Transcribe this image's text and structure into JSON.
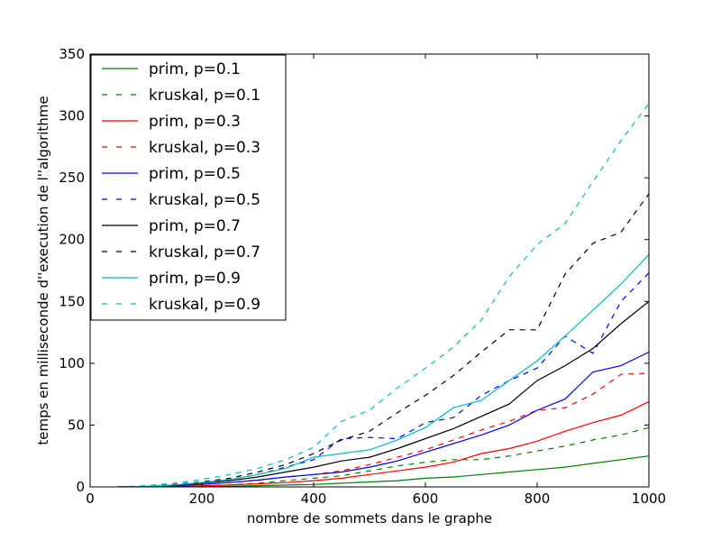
{
  "chart_data": {
    "type": "line",
    "title": "",
    "xlabel": "nombre de sommets dans le graphe",
    "ylabel": "temps en milliseconde d''execution de l''algorithme",
    "xlim": [
      0,
      1000
    ],
    "ylim": [
      0,
      350
    ],
    "xticks": [
      0,
      200,
      400,
      600,
      800,
      1000
    ],
    "yticks": [
      0,
      50,
      100,
      150,
      200,
      250,
      300,
      350
    ],
    "grid": false,
    "legend_position": "top-left",
    "x": [
      50,
      100,
      150,
      200,
      250,
      300,
      350,
      400,
      450,
      500,
      550,
      600,
      650,
      700,
      750,
      800,
      850,
      900,
      950,
      1000
    ],
    "series": [
      {
        "name": "prim, p=0.1",
        "color": "#008000",
        "dash": "solid",
        "values": [
          0,
          0,
          0,
          0.3,
          0.5,
          1,
          1.5,
          2,
          3,
          4,
          5,
          7,
          8,
          10,
          12,
          14,
          16,
          19,
          22,
          25
        ]
      },
      {
        "name": "kruskal, p=0.1",
        "color": "#008000",
        "dash": "dashed",
        "values": [
          0,
          0,
          0.3,
          0.8,
          1.5,
          3,
          5,
          7,
          9,
          13,
          17,
          20,
          22,
          22,
          25,
          29,
          33,
          38,
          42,
          48
        ]
      },
      {
        "name": "prim, p=0.3",
        "color": "#ff0000",
        "dash": "solid",
        "values": [
          0,
          0,
          0.3,
          0.8,
          1.5,
          2.5,
          3.5,
          5,
          7,
          10,
          13,
          16,
          20,
          27,
          31,
          37,
          45,
          52,
          58,
          69
        ]
      },
      {
        "name": "kruskal, p=0.3",
        "color": "#ff0000",
        "dash": "dashed",
        "values": [
          0,
          0.3,
          0.8,
          2,
          3.5,
          5.5,
          8,
          10,
          13,
          18,
          24,
          30,
          38,
          46,
          53,
          62,
          64,
          75,
          91,
          92
        ]
      },
      {
        "name": "prim, p=0.5",
        "color": "#0000ff",
        "dash": "solid",
        "values": [
          0,
          0.3,
          1,
          2,
          3.5,
          5.5,
          8,
          10,
          12,
          16,
          21,
          28,
          35,
          42,
          50,
          62,
          71,
          93,
          98,
          109
        ]
      },
      {
        "name": "kruskal, p=0.5",
        "color": "#0000ff",
        "dash": "dashed",
        "values": [
          0,
          0.5,
          1.5,
          3,
          6,
          10,
          16,
          22,
          39,
          40,
          39,
          52,
          56,
          74,
          86,
          96,
          122,
          108,
          150,
          173
        ]
      },
      {
        "name": "prim, p=0.7",
        "color": "#000000",
        "dash": "solid",
        "values": [
          0,
          0.4,
          1.2,
          3,
          5,
          8,
          12,
          16,
          21,
          24,
          31,
          39,
          47,
          57,
          67,
          86,
          98,
          112,
          132,
          150
        ]
      },
      {
        "name": "kruskal, p=0.7",
        "color": "#000000",
        "dash": "dashed",
        "values": [
          0,
          0.6,
          2,
          4,
          7,
          12,
          18,
          27,
          38,
          45,
          60,
          74,
          90,
          109,
          127,
          127,
          172,
          197,
          206,
          237
        ]
      },
      {
        "name": "prim, p=0.9",
        "color": "#00bfbf",
        "dash": "solid",
        "values": [
          0,
          0.5,
          1.5,
          3.5,
          6,
          10,
          15,
          24,
          27,
          30,
          38,
          48,
          64,
          70,
          86,
          102,
          122,
          143,
          164,
          188
        ]
      },
      {
        "name": "kruskal, p=0.9",
        "color": "#00bfbf",
        "dash": "dashed",
        "values": [
          0,
          1,
          3,
          6,
          10,
          15,
          22,
          32,
          53,
          62,
          80,
          96,
          113,
          135,
          170,
          196,
          213,
          247,
          280,
          310
        ]
      }
    ]
  }
}
